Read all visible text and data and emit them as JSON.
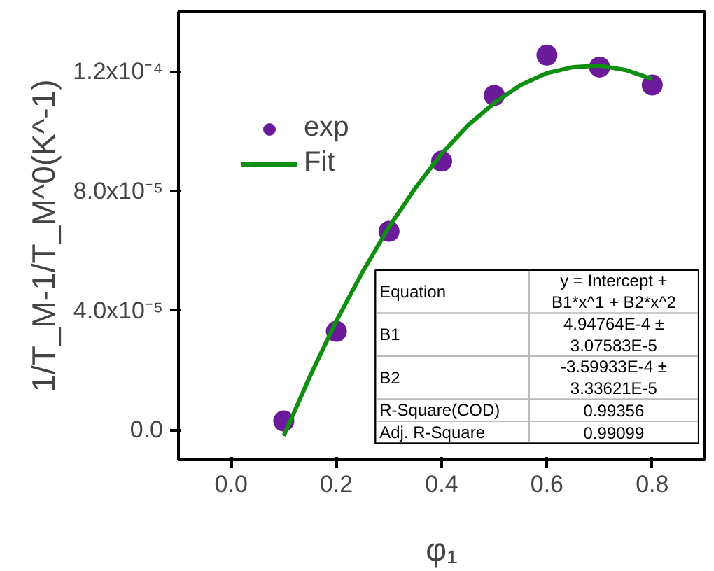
{
  "chart_data": {
    "type": "scatter",
    "xlabel": "φ₁",
    "ylabel": "1/T_M-1/T_M^0(K^-1)",
    "xlim": [
      -0.1,
      0.9
    ],
    "xticks": [
      {
        "value": 0,
        "label": "0.0"
      },
      0.2,
      0.4,
      0.6,
      0.8
    ],
    "ylim": [
      -1e-05,
      0.00014
    ],
    "yticks": [
      {
        "value": 0,
        "label": "0.0"
      },
      {
        "value": 4e-05,
        "label": "4.0x10⁻⁵"
      },
      {
        "value": 8e-05,
        "label": "8.0x10⁻⁵"
      },
      {
        "value": 0.00012,
        "label": "1.2x10⁻⁴"
      }
    ],
    "x": [
      0.1,
      0.2,
      0.3,
      0.4,
      0.5,
      0.6,
      0.7,
      0.8
    ],
    "series": [
      {
        "name": "exp",
        "color": "#6b1a9a",
        "marker": "circle",
        "values": [
          3e-06,
          3.3e-05,
          6.65e-05,
          9e-05,
          0.000112,
          0.0001255,
          0.0001215,
          0.0001155
        ]
      },
      {
        "name": "Fit",
        "type": "line",
        "color": "#0f8f0f",
        "line_style": "solid",
        "x": [
          0.1,
          0.15,
          0.2,
          0.25,
          0.3,
          0.35,
          0.4,
          0.45,
          0.5,
          0.55,
          0.6,
          0.65,
          0.7,
          0.75,
          0.8
        ],
        "values": [
          -2e-06,
          1.8e-05,
          3.65e-05,
          5.3e-05,
          6.8e-05,
          8.1e-05,
          9.25e-05,
          0.000102,
          0.0001095,
          0.0001155,
          0.0001195,
          0.0001215,
          0.000122,
          0.0001205,
          0.0001175
        ]
      }
    ],
    "legend": "top left",
    "grid": false,
    "annotations": [
      "Equation",
      "y = Intercept + B1*x^1 + B2*x^2",
      "B1",
      "4.94764E-4 ± 3.07583E-5",
      "B2",
      "-3.59933E-4 ± 3.33621E-5",
      "R-Square(COD)",
      "0.99356",
      "Adj. R-Square",
      "0.99099"
    ]
  }
}
